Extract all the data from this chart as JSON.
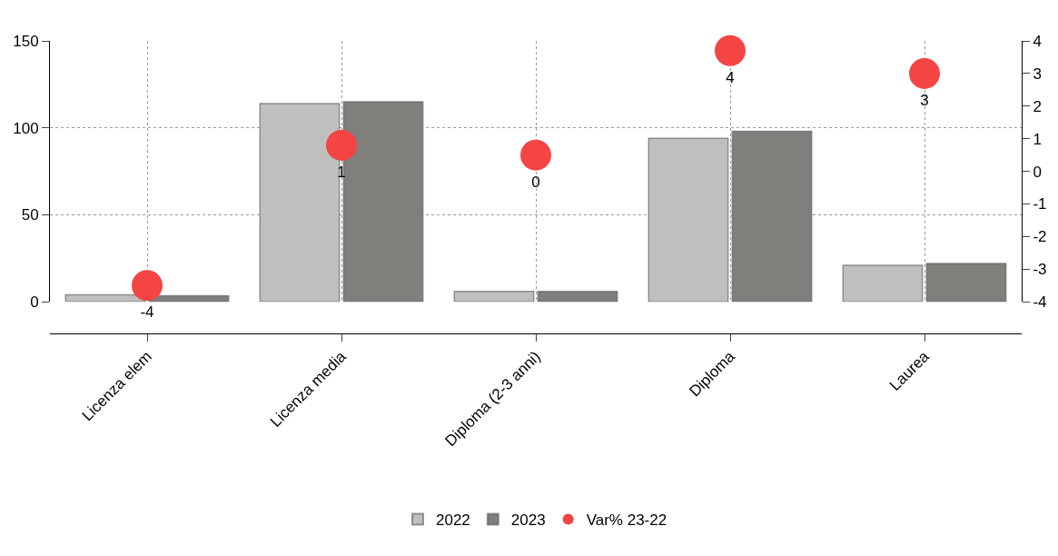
{
  "chart_data": {
    "type": "bar",
    "categories": [
      "Licenza elem",
      "Licenza media",
      "Diploma (2-3 anni)",
      "Diploma",
      "Laurea"
    ],
    "series": [
      {
        "name": "2022",
        "color": "#bfbfbd",
        "values": [
          4,
          114,
          6,
          94,
          21
        ]
      },
      {
        "name": "2023",
        "color": "#807f7b",
        "values": [
          3.5,
          115,
          6,
          98,
          22
        ]
      },
      {
        "name": "Var% 23-22",
        "type": "scatter",
        "axis": "y2",
        "color": "#f54444",
        "marker": "circle",
        "values": [
          -3.5,
          0.8,
          0.5,
          3.7,
          3.0
        ],
        "value_labels": [
          "-4",
          "1",
          "0",
          "4",
          "3"
        ]
      }
    ],
    "ylim": [
      0,
      150
    ],
    "yticks": [
      0,
      50,
      100,
      150
    ],
    "y2lim": [
      -4,
      4
    ],
    "y2ticks": [
      -4,
      -3,
      -2,
      -1,
      0,
      1,
      2,
      3,
      4
    ],
    "grid": true,
    "legend": "bottom"
  }
}
